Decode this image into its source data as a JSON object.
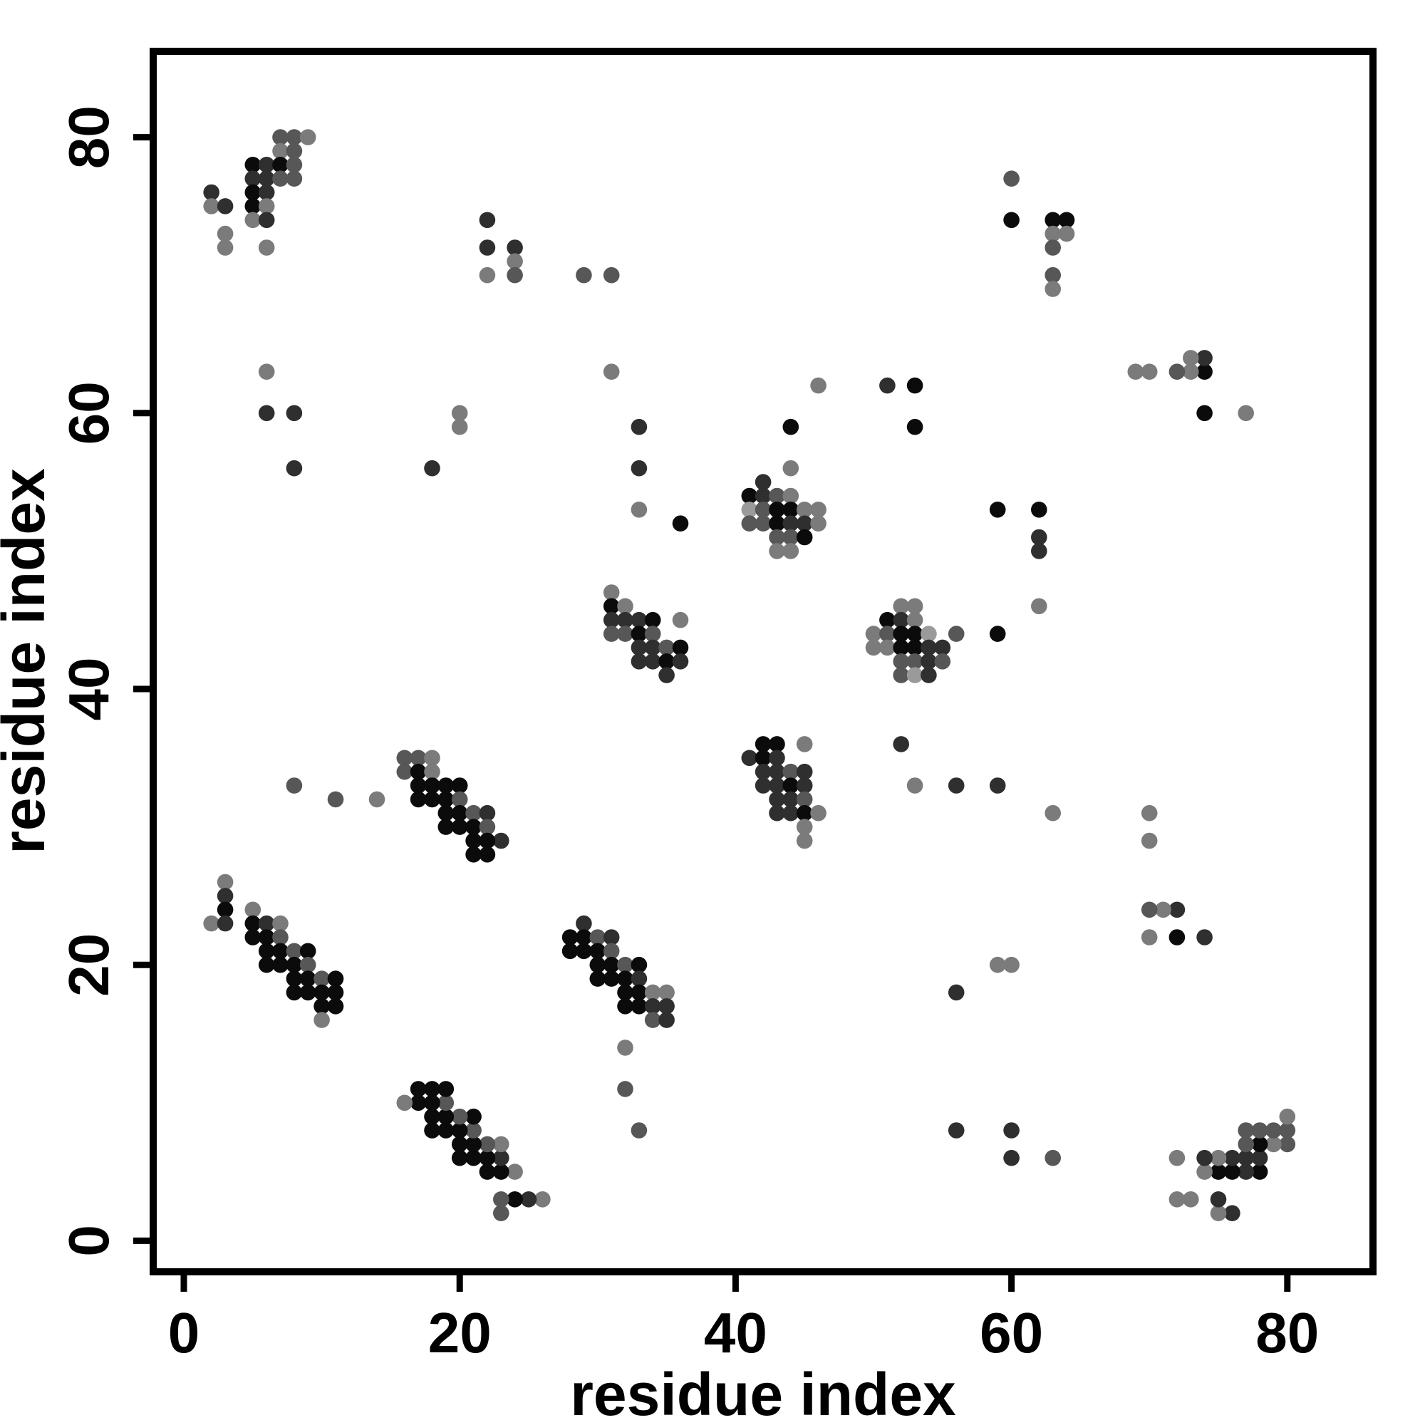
{
  "chart_data": {
    "type": "scatter",
    "title": "",
    "xlabel": "residue index",
    "ylabel": "residue index",
    "xlim": [
      -2.2,
      86.2
    ],
    "ylim": [
      -2.25,
      86.2
    ],
    "x_ticks": [
      0,
      20,
      40,
      60,
      80
    ],
    "y_ticks": [
      0,
      20,
      40,
      60,
      80
    ],
    "grid": false,
    "legend": "none",
    "marker": "filled-circle",
    "shade_colors": {
      "b": "#0b0b0b",
      "d": "#2f2f2f",
      "m": "#575757",
      "g": "#7b7b7b",
      "l": "#9a9a9a"
    },
    "points": [
      [
        7,
        80,
        "m"
      ],
      [
        8,
        80,
        "m"
      ],
      [
        9,
        80,
        "g"
      ],
      [
        7,
        79,
        "g"
      ],
      [
        8,
        79,
        "m"
      ],
      [
        5,
        78,
        "b"
      ],
      [
        6,
        78,
        "d"
      ],
      [
        7,
        78,
        "b"
      ],
      [
        8,
        78,
        "m"
      ],
      [
        5,
        77,
        "d"
      ],
      [
        6,
        77,
        "d"
      ],
      [
        7,
        77,
        "m"
      ],
      [
        8,
        77,
        "m"
      ],
      [
        2,
        76,
        "d"
      ],
      [
        5,
        76,
        "b"
      ],
      [
        6,
        76,
        "d"
      ],
      [
        2,
        75,
        "g"
      ],
      [
        3,
        75,
        "d"
      ],
      [
        5,
        75,
        "b"
      ],
      [
        6,
        75,
        "g"
      ],
      [
        5,
        74,
        "g"
      ],
      [
        6,
        74,
        "d"
      ],
      [
        3,
        73,
        "g"
      ],
      [
        3,
        72,
        "g"
      ],
      [
        6,
        72,
        "g"
      ],
      [
        80,
        7,
        "m"
      ],
      [
        80,
        8,
        "m"
      ],
      [
        80,
        9,
        "g"
      ],
      [
        79,
        7,
        "g"
      ],
      [
        79,
        8,
        "m"
      ],
      [
        78,
        5,
        "b"
      ],
      [
        78,
        6,
        "d"
      ],
      [
        78,
        7,
        "b"
      ],
      [
        78,
        8,
        "m"
      ],
      [
        77,
        5,
        "d"
      ],
      [
        77,
        6,
        "d"
      ],
      [
        77,
        7,
        "m"
      ],
      [
        77,
        8,
        "m"
      ],
      [
        76,
        2,
        "d"
      ],
      [
        76,
        5,
        "b"
      ],
      [
        76,
        6,
        "d"
      ],
      [
        75,
        2,
        "g"
      ],
      [
        75,
        3,
        "d"
      ],
      [
        75,
        5,
        "b"
      ],
      [
        75,
        6,
        "g"
      ],
      [
        74,
        5,
        "g"
      ],
      [
        74,
        6,
        "d"
      ],
      [
        73,
        3,
        "g"
      ],
      [
        72,
        3,
        "g"
      ],
      [
        72,
        6,
        "g"
      ],
      [
        22,
        74,
        "d"
      ],
      [
        22,
        72,
        "d"
      ],
      [
        24,
        72,
        "d"
      ],
      [
        24,
        71,
        "g"
      ],
      [
        22,
        70,
        "g"
      ],
      [
        24,
        70,
        "m"
      ],
      [
        74,
        22,
        "d"
      ],
      [
        72,
        22,
        "b"
      ],
      [
        72,
        24,
        "d"
      ],
      [
        71,
        24,
        "g"
      ],
      [
        70,
        22,
        "g"
      ],
      [
        70,
        24,
        "m"
      ],
      [
        60,
        77,
        "m"
      ],
      [
        60,
        74,
        "b"
      ],
      [
        63,
        74,
        "b"
      ],
      [
        64,
        74,
        "b"
      ],
      [
        63,
        73,
        "g"
      ],
      [
        64,
        73,
        "g"
      ],
      [
        63,
        72,
        "m"
      ],
      [
        63,
        70,
        "m"
      ],
      [
        63,
        69,
        "g"
      ],
      [
        77,
        60,
        "g"
      ],
      [
        74,
        60,
        "b"
      ],
      [
        74,
        63,
        "b"
      ],
      [
        74,
        64,
        "d"
      ],
      [
        73,
        63,
        "g"
      ],
      [
        73,
        64,
        "g"
      ],
      [
        72,
        63,
        "m"
      ],
      [
        70,
        63,
        "g"
      ],
      [
        69,
        63,
        "g"
      ],
      [
        29,
        70,
        "m"
      ],
      [
        31,
        70,
        "m"
      ],
      [
        70,
        29,
        "g"
      ],
      [
        70,
        31,
        "g"
      ],
      [
        31,
        63,
        "g"
      ],
      [
        63,
        31,
        "g"
      ],
      [
        6,
        63,
        "g"
      ],
      [
        63,
        6,
        "m"
      ],
      [
        6,
        60,
        "d"
      ],
      [
        60,
        6,
        "d"
      ],
      [
        8,
        60,
        "d"
      ],
      [
        60,
        8,
        "d"
      ],
      [
        8,
        56,
        "d"
      ],
      [
        56,
        8,
        "d"
      ],
      [
        18,
        56,
        "d"
      ],
      [
        56,
        18,
        "d"
      ],
      [
        20,
        60,
        "g"
      ],
      [
        60,
        20,
        "g"
      ],
      [
        20,
        59,
        "g"
      ],
      [
        59,
        20,
        "g"
      ],
      [
        42,
        55,
        "d"
      ],
      [
        41,
        54,
        "b"
      ],
      [
        42,
        54,
        "d"
      ],
      [
        43,
        54,
        "m"
      ],
      [
        44,
        54,
        "g"
      ],
      [
        41,
        53,
        "l"
      ],
      [
        42,
        53,
        "m"
      ],
      [
        43,
        53,
        "b"
      ],
      [
        44,
        53,
        "b"
      ],
      [
        45,
        53,
        "g"
      ],
      [
        46,
        53,
        "g"
      ],
      [
        41,
        52,
        "m"
      ],
      [
        42,
        52,
        "m"
      ],
      [
        43,
        52,
        "b"
      ],
      [
        44,
        52,
        "d"
      ],
      [
        45,
        52,
        "d"
      ],
      [
        46,
        52,
        "g"
      ],
      [
        43,
        51,
        "m"
      ],
      [
        44,
        51,
        "m"
      ],
      [
        45,
        51,
        "b"
      ],
      [
        43,
        50,
        "g"
      ],
      [
        44,
        50,
        "g"
      ],
      [
        52,
        46,
        "g"
      ],
      [
        53,
        46,
        "g"
      ],
      [
        51,
        45,
        "b"
      ],
      [
        52,
        45,
        "d"
      ],
      [
        53,
        45,
        "g"
      ],
      [
        50,
        44,
        "g"
      ],
      [
        51,
        44,
        "m"
      ],
      [
        52,
        44,
        "b"
      ],
      [
        53,
        44,
        "b"
      ],
      [
        54,
        44,
        "l"
      ],
      [
        56,
        44,
        "m"
      ],
      [
        50,
        43,
        "g"
      ],
      [
        51,
        43,
        "g"
      ],
      [
        52,
        43,
        "b"
      ],
      [
        53,
        43,
        "b"
      ],
      [
        54,
        43,
        "d"
      ],
      [
        55,
        43,
        "d"
      ],
      [
        52,
        42,
        "m"
      ],
      [
        53,
        42,
        "m"
      ],
      [
        54,
        42,
        "d"
      ],
      [
        55,
        42,
        "m"
      ],
      [
        52,
        41,
        "m"
      ],
      [
        53,
        41,
        "l"
      ],
      [
        54,
        41,
        "d"
      ],
      [
        42,
        36,
        "b"
      ],
      [
        43,
        36,
        "b"
      ],
      [
        45,
        36,
        "g"
      ],
      [
        41,
        35,
        "d"
      ],
      [
        42,
        35,
        "b"
      ],
      [
        43,
        35,
        "d"
      ],
      [
        42,
        34,
        "d"
      ],
      [
        43,
        34,
        "d"
      ],
      [
        44,
        34,
        "m"
      ],
      [
        45,
        34,
        "d"
      ],
      [
        42,
        33,
        "d"
      ],
      [
        43,
        33,
        "d"
      ],
      [
        44,
        33,
        "b"
      ],
      [
        45,
        33,
        "d"
      ],
      [
        43,
        32,
        "d"
      ],
      [
        44,
        32,
        "d"
      ],
      [
        45,
        32,
        "m"
      ],
      [
        43,
        31,
        "d"
      ],
      [
        44,
        31,
        "d"
      ],
      [
        45,
        31,
        "b"
      ],
      [
        46,
        31,
        "g"
      ],
      [
        45,
        30,
        "g"
      ],
      [
        45,
        29,
        "g"
      ],
      [
        31,
        47,
        "g"
      ],
      [
        31,
        46,
        "b"
      ],
      [
        32,
        46,
        "g"
      ],
      [
        31,
        45,
        "d"
      ],
      [
        32,
        45,
        "d"
      ],
      [
        33,
        45,
        "d"
      ],
      [
        34,
        45,
        "b"
      ],
      [
        36,
        45,
        "g"
      ],
      [
        31,
        44,
        "m"
      ],
      [
        32,
        44,
        "m"
      ],
      [
        33,
        44,
        "b"
      ],
      [
        34,
        44,
        "m"
      ],
      [
        33,
        43,
        "d"
      ],
      [
        34,
        43,
        "d"
      ],
      [
        35,
        43,
        "m"
      ],
      [
        36,
        43,
        "b"
      ],
      [
        33,
        42,
        "d"
      ],
      [
        34,
        42,
        "d"
      ],
      [
        35,
        42,
        "b"
      ],
      [
        36,
        42,
        "d"
      ],
      [
        35,
        41,
        "d"
      ],
      [
        36,
        52,
        "b"
      ],
      [
        52,
        36,
        "d"
      ],
      [
        33,
        59,
        "d"
      ],
      [
        59,
        33,
        "d"
      ],
      [
        33,
        56,
        "d"
      ],
      [
        56,
        33,
        "d"
      ],
      [
        33,
        53,
        "g"
      ],
      [
        53,
        33,
        "g"
      ],
      [
        44,
        59,
        "b"
      ],
      [
        59,
        44,
        "b"
      ],
      [
        44,
        56,
        "g"
      ],
      [
        46,
        62,
        "g"
      ],
      [
        62,
        46,
        "g"
      ],
      [
        51,
        62,
        "d"
      ],
      [
        62,
        51,
        "d"
      ],
      [
        53,
        62,
        "b"
      ],
      [
        62,
        53,
        "b"
      ],
      [
        53,
        59,
        "b"
      ],
      [
        59,
        53,
        "b"
      ],
      [
        62,
        50,
        "d"
      ],
      [
        8,
        33,
        "m"
      ],
      [
        33,
        8,
        "m"
      ],
      [
        11,
        32,
        "m"
      ],
      [
        32,
        11,
        "m"
      ],
      [
        14,
        32,
        "g"
      ],
      [
        32,
        14,
        "g"
      ],
      [
        23,
        29,
        "d"
      ],
      [
        29,
        23,
        "d"
      ],
      [
        16,
        35,
        "m"
      ],
      [
        17,
        35,
        "m"
      ],
      [
        18,
        35,
        "g"
      ],
      [
        16,
        34,
        "m"
      ],
      [
        17,
        34,
        "b"
      ],
      [
        18,
        34,
        "g"
      ],
      [
        17,
        33,
        "b"
      ],
      [
        18,
        33,
        "b"
      ],
      [
        19,
        33,
        "b"
      ],
      [
        20,
        33,
        "b"
      ],
      [
        17,
        32,
        "b"
      ],
      [
        18,
        32,
        "b"
      ],
      [
        19,
        32,
        "b"
      ],
      [
        20,
        32,
        "m"
      ],
      [
        19,
        31,
        "b"
      ],
      [
        20,
        31,
        "b"
      ],
      [
        21,
        31,
        "m"
      ],
      [
        22,
        31,
        "d"
      ],
      [
        19,
        30,
        "b"
      ],
      [
        20,
        30,
        "b"
      ],
      [
        21,
        30,
        "b"
      ],
      [
        22,
        30,
        "m"
      ],
      [
        21,
        29,
        "b"
      ],
      [
        22,
        29,
        "b"
      ],
      [
        21,
        28,
        "b"
      ],
      [
        22,
        28,
        "b"
      ],
      [
        28,
        22,
        "b"
      ],
      [
        29,
        22,
        "b"
      ],
      [
        30,
        22,
        "m"
      ],
      [
        31,
        22,
        "d"
      ],
      [
        28,
        21,
        "b"
      ],
      [
        29,
        21,
        "b"
      ],
      [
        30,
        21,
        "b"
      ],
      [
        31,
        21,
        "m"
      ],
      [
        30,
        20,
        "b"
      ],
      [
        31,
        20,
        "b"
      ],
      [
        32,
        20,
        "m"
      ],
      [
        33,
        20,
        "b"
      ],
      [
        30,
        19,
        "b"
      ],
      [
        31,
        19,
        "b"
      ],
      [
        32,
        19,
        "b"
      ],
      [
        33,
        19,
        "d"
      ],
      [
        32,
        18,
        "b"
      ],
      [
        33,
        18,
        "b"
      ],
      [
        34,
        18,
        "g"
      ],
      [
        35,
        18,
        "g"
      ],
      [
        32,
        17,
        "b"
      ],
      [
        33,
        17,
        "b"
      ],
      [
        34,
        17,
        "d"
      ],
      [
        35,
        17,
        "d"
      ],
      [
        34,
        16,
        "m"
      ],
      [
        35,
        16,
        "d"
      ],
      [
        3,
        26,
        "g"
      ],
      [
        3,
        25,
        "d"
      ],
      [
        3,
        24,
        "b"
      ],
      [
        2,
        23,
        "g"
      ],
      [
        3,
        23,
        "d"
      ],
      [
        5,
        24,
        "g"
      ],
      [
        5,
        23,
        "b"
      ],
      [
        6,
        23,
        "d"
      ],
      [
        7,
        23,
        "g"
      ],
      [
        5,
        22,
        "b"
      ],
      [
        6,
        22,
        "b"
      ],
      [
        7,
        22,
        "m"
      ],
      [
        6,
        21,
        "b"
      ],
      [
        7,
        21,
        "b"
      ],
      [
        8,
        21,
        "m"
      ],
      [
        9,
        21,
        "b"
      ],
      [
        6,
        20,
        "b"
      ],
      [
        7,
        20,
        "b"
      ],
      [
        8,
        20,
        "b"
      ],
      [
        9,
        20,
        "m"
      ],
      [
        8,
        19,
        "b"
      ],
      [
        9,
        19,
        "b"
      ],
      [
        10,
        19,
        "m"
      ],
      [
        11,
        19,
        "b"
      ],
      [
        8,
        18,
        "b"
      ],
      [
        9,
        18,
        "b"
      ],
      [
        10,
        18,
        "b"
      ],
      [
        11,
        18,
        "b"
      ],
      [
        10,
        17,
        "b"
      ],
      [
        11,
        17,
        "b"
      ],
      [
        10,
        16,
        "g"
      ],
      [
        26,
        3,
        "g"
      ],
      [
        25,
        3,
        "d"
      ],
      [
        24,
        3,
        "b"
      ],
      [
        23,
        2,
        "m"
      ],
      [
        23,
        3,
        "m"
      ],
      [
        24,
        5,
        "g"
      ],
      [
        23,
        5,
        "b"
      ],
      [
        23,
        6,
        "d"
      ],
      [
        23,
        7,
        "g"
      ],
      [
        22,
        5,
        "b"
      ],
      [
        22,
        6,
        "b"
      ],
      [
        22,
        7,
        "m"
      ],
      [
        21,
        6,
        "b"
      ],
      [
        21,
        7,
        "b"
      ],
      [
        21,
        8,
        "m"
      ],
      [
        21,
        9,
        "b"
      ],
      [
        20,
        6,
        "b"
      ],
      [
        20,
        7,
        "b"
      ],
      [
        20,
        8,
        "b"
      ],
      [
        20,
        9,
        "m"
      ],
      [
        19,
        8,
        "b"
      ],
      [
        19,
        9,
        "b"
      ],
      [
        19,
        10,
        "m"
      ],
      [
        19,
        11,
        "b"
      ],
      [
        18,
        8,
        "b"
      ],
      [
        18,
        9,
        "b"
      ],
      [
        18,
        10,
        "b"
      ],
      [
        18,
        11,
        "b"
      ],
      [
        17,
        10,
        "b"
      ],
      [
        17,
        11,
        "b"
      ],
      [
        16,
        10,
        "g"
      ]
    ]
  }
}
